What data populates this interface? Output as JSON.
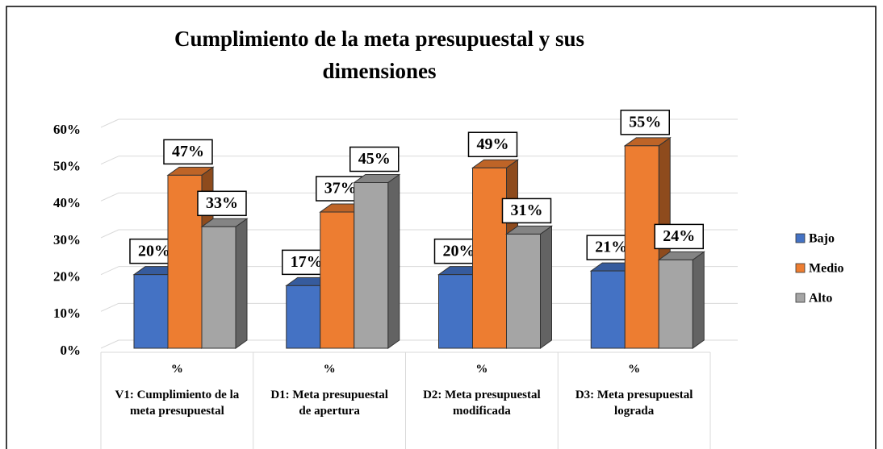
{
  "chart_data": {
    "type": "bar3d",
    "title": "Cumplimiento de la meta presupuestal y sus dimensiones",
    "categories": [
      "V1: Cumplimiento de la meta presupuestal",
      "D1: Meta presupuestal de apertura",
      "D2: Meta presupuestal modificada",
      "D3: Meta presupuestal lograda"
    ],
    "subcategory_labels": [
      "%",
      "%",
      "%",
      "%"
    ],
    "series": [
      {
        "name": "Bajo",
        "color": "#4472c4",
        "values": [
          20,
          17,
          20,
          21
        ],
        "value_labels": [
          "20%",
          "17%",
          "20%",
          "21%"
        ]
      },
      {
        "name": "Medio",
        "color": "#ed7d31",
        "values": [
          47,
          37,
          49,
          55
        ],
        "value_labels": [
          "47%",
          "37%",
          "49%",
          "55%"
        ]
      },
      {
        "name": "Alto",
        "color": "#a5a5a5",
        "values": [
          33,
          45,
          31,
          24
        ],
        "value_labels": [
          "33%",
          "45%",
          "31%",
          "24%"
        ]
      }
    ],
    "ylim": [
      0,
      60
    ],
    "yticks": [
      {
        "value": 0,
        "label": "0%"
      },
      {
        "value": 10,
        "label": "10%"
      },
      {
        "value": 20,
        "label": "20%"
      },
      {
        "value": 30,
        "label": "30%"
      },
      {
        "value": 40,
        "label": "40%"
      },
      {
        "value": 50,
        "label": "50%"
      },
      {
        "value": 60,
        "label": "60%"
      }
    ],
    "grid": true,
    "legend": "right"
  }
}
